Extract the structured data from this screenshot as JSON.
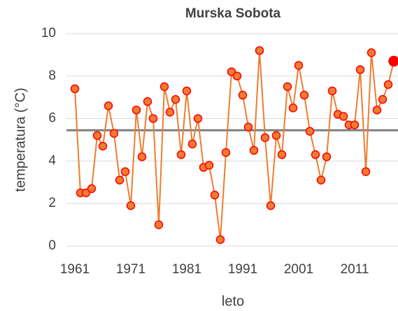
{
  "chart_data": {
    "type": "line",
    "title": "Murska Sobota",
    "x_label": "leto",
    "y_label": "temperatura (°C)",
    "x": [
      1961,
      1962,
      1963,
      1964,
      1965,
      1966,
      1967,
      1968,
      1969,
      1970,
      1971,
      1972,
      1973,
      1974,
      1975,
      1976,
      1977,
      1978,
      1979,
      1980,
      1981,
      1982,
      1983,
      1984,
      1985,
      1986,
      1987,
      1988,
      1989,
      1990,
      1991,
      1992,
      1993,
      1994,
      1995,
      1996,
      1997,
      1998,
      1999,
      2000,
      2001,
      2002,
      2003,
      2004,
      2005,
      2006,
      2007,
      2008,
      2009,
      2010,
      2011,
      2012,
      2013,
      2014,
      2015,
      2016,
      2017,
      2018
    ],
    "series": [
      {
        "name": "temperatura",
        "color": "#ed7d31",
        "marker_edge": "#ff0000",
        "highlight_color": "#ff0000",
        "values": [
          7.4,
          2.5,
          2.5,
          2.7,
          5.2,
          4.7,
          6.6,
          5.3,
          3.1,
          3.5,
          1.9,
          6.4,
          4.2,
          6.8,
          6.0,
          1.0,
          7.5,
          6.3,
          6.9,
          4.3,
          7.3,
          4.8,
          6.0,
          3.7,
          3.8,
          2.4,
          0.3,
          4.4,
          8.2,
          8.0,
          7.1,
          5.6,
          4.5,
          9.2,
          5.1,
          1.9,
          5.2,
          4.3,
          7.5,
          6.5,
          8.5,
          7.1,
          5.4,
          4.3,
          3.1,
          4.2,
          7.3,
          6.2,
          6.1,
          5.7,
          5.7,
          8.3,
          3.5,
          9.1,
          6.4,
          6.9,
          7.6,
          8.7
        ]
      }
    ],
    "mean_line": {
      "value": 5.45,
      "color": "#808080"
    },
    "xlim": [
      1959.5,
      2018
    ],
    "xticks": [
      1961,
      1971,
      1981,
      1991,
      2001,
      2011
    ],
    "ylim": [
      0,
      10
    ],
    "yticks": [
      0,
      2,
      4,
      6,
      8,
      10
    ],
    "grid": true
  }
}
